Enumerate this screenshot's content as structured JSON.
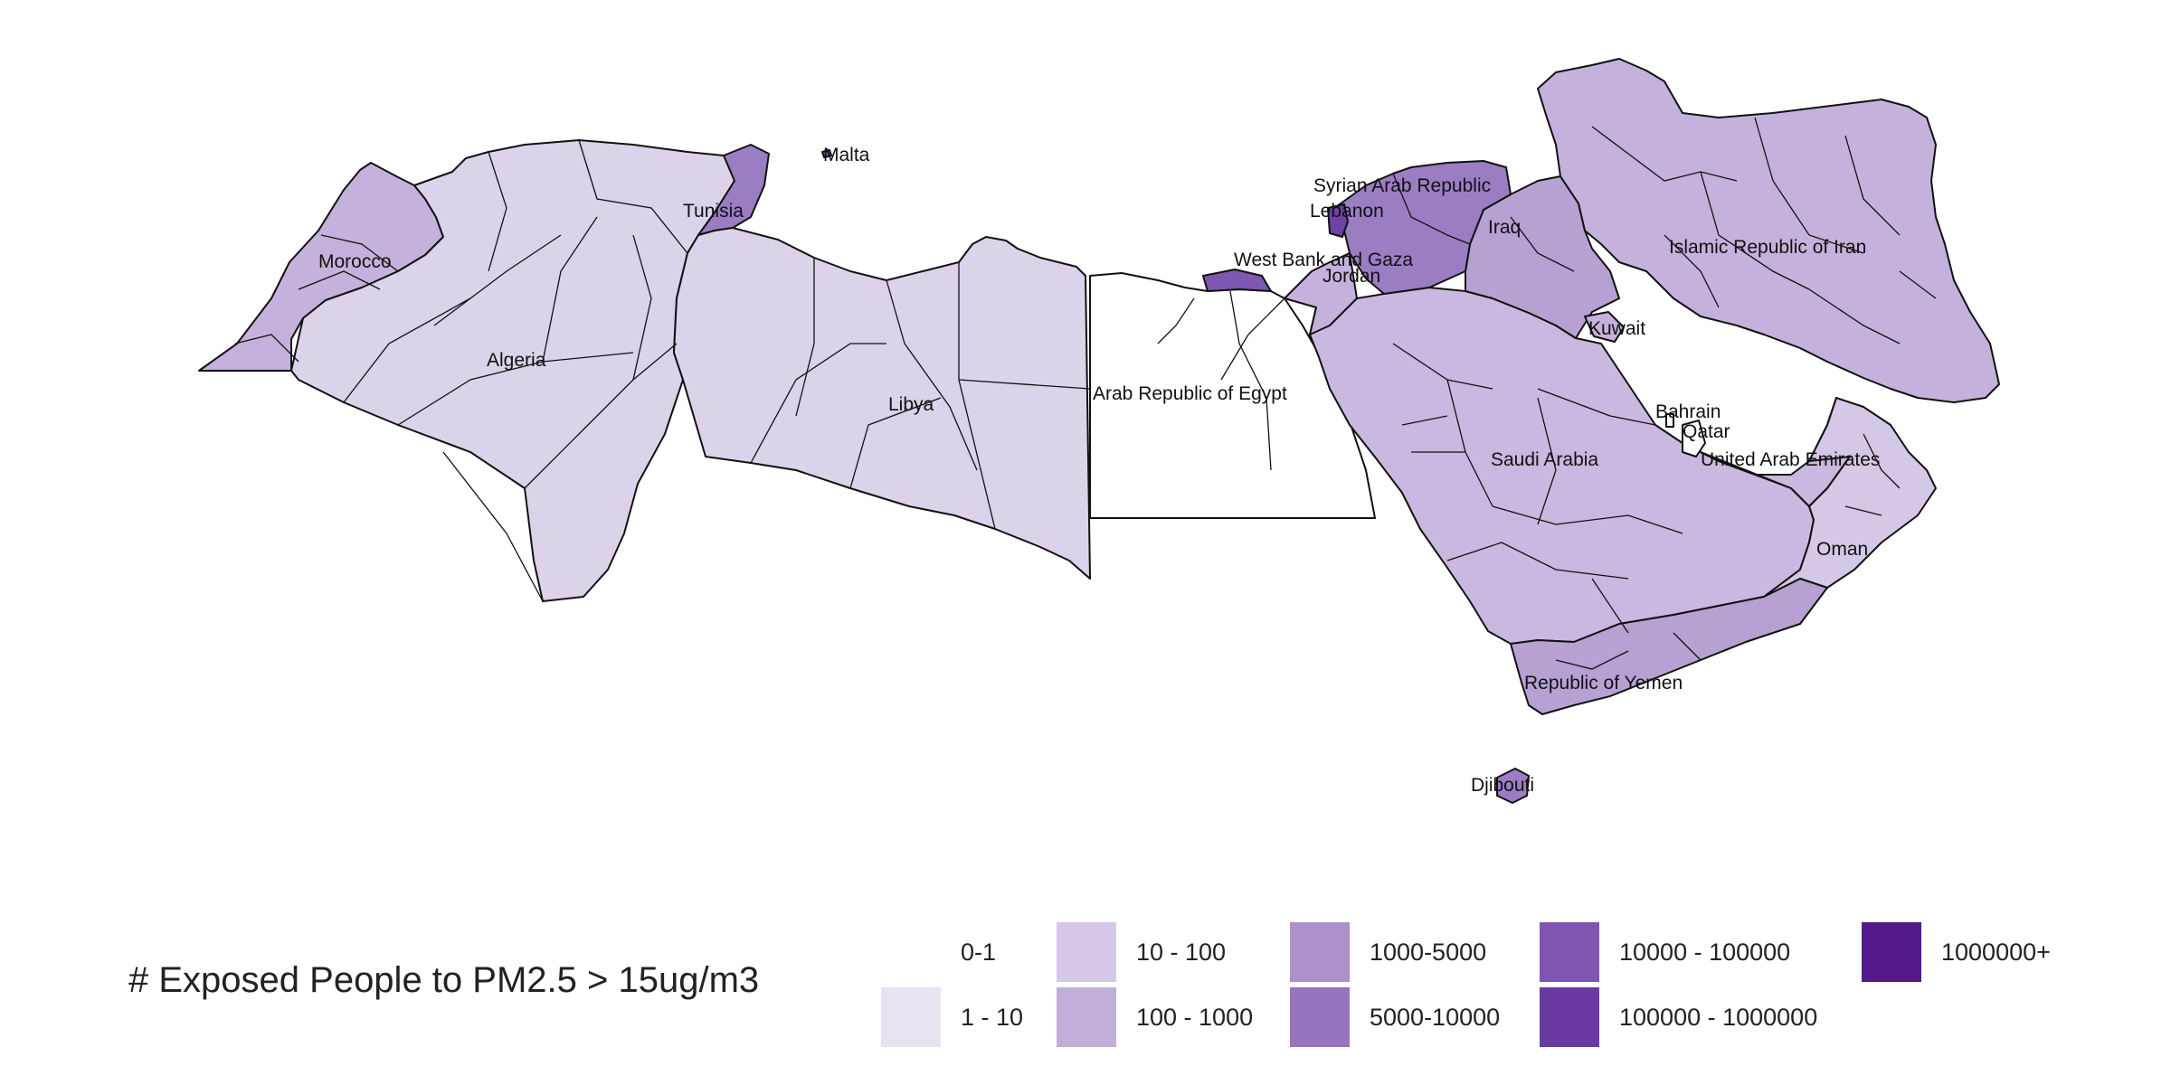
{
  "map": {
    "countries": [
      {
        "id": "morocco",
        "label": "Morocco",
        "fill": "#c4b2dc"
      },
      {
        "id": "algeria",
        "label": "Algeria",
        "fill": "#dcd2ea"
      },
      {
        "id": "tunisia",
        "label": "Tunisia",
        "fill": "#9b7dc3"
      },
      {
        "id": "libya",
        "label": "Libya",
        "fill": "#dcd2ea"
      },
      {
        "id": "malta",
        "label": "Malta",
        "fill": "#7e57b0"
      },
      {
        "id": "egypt",
        "label": "Arab Republic of Egypt",
        "fill": "#ffffff"
      },
      {
        "id": "saudi",
        "label": "Saudi Arabia",
        "fill": "#c9b8df"
      },
      {
        "id": "iran",
        "label": "Islamic Republic of Iran",
        "fill": "#c4b2dc"
      },
      {
        "id": "iraq",
        "label": "Iraq",
        "fill": "#b7a1d3"
      },
      {
        "id": "syria",
        "label": "Syrian Arab Republic",
        "fill": "#9b7dc3"
      },
      {
        "id": "lebanon",
        "label": "Lebanon",
        "fill": "#6d43a3"
      },
      {
        "id": "westbank",
        "label": "West Bank and Gaza",
        "fill": "#7e57b0"
      },
      {
        "id": "jordan",
        "label": "Jordan",
        "fill": "#c4b2dc"
      },
      {
        "id": "kuwait",
        "label": "Kuwait",
        "fill": "#c4b2dc"
      },
      {
        "id": "bahrain",
        "label": "Bahrain",
        "fill": "#ffffff"
      },
      {
        "id": "qatar",
        "label": "Qatar",
        "fill": "#ffffff"
      },
      {
        "id": "uae",
        "label": "United Arab Emirates",
        "fill": "#c9b8df"
      },
      {
        "id": "oman",
        "label": "Oman",
        "fill": "#d5c8e6"
      },
      {
        "id": "yemen",
        "label": "Republic of Yemen",
        "fill": "#b7a1d3"
      },
      {
        "id": "djibouti",
        "label": "Djibouti",
        "fill": "#9b7dc3"
      }
    ]
  },
  "legend": {
    "title": "# Exposed People to PM2.5 > 15ug/m3",
    "items": [
      {
        "label": "0-1",
        "color": "#ffffff"
      },
      {
        "label": "1 - 10",
        "color": "#e8e2f1"
      },
      {
        "label": "10 - 100",
        "color": "#d5c8e6"
      },
      {
        "label": "100 - 1000",
        "color": "#c1aed9"
      },
      {
        "label": "1000-5000",
        "color": "#ab90cc"
      },
      {
        "label": "5000-10000",
        "color": "#9774bd"
      },
      {
        "label": "10000 - 100000",
        "color": "#7f55b0"
      },
      {
        "label": "100000 - 1000000",
        "color": "#6a3aa3"
      },
      {
        "label": "1000000+",
        "color": "#55198e"
      }
    ]
  }
}
